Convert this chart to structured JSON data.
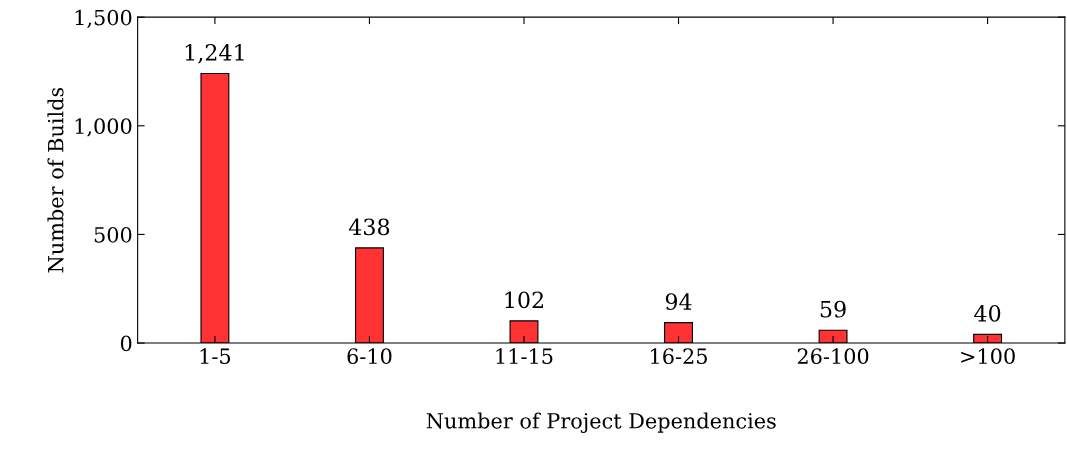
{
  "chart_data": {
    "type": "bar",
    "xlabel": "Number of Project Dependencies",
    "ylabel": "Number of Builds",
    "categories": [
      "1-5",
      "6-10",
      "11-15",
      "16-25",
      "26-100",
      ">100"
    ],
    "values": [
      1241,
      438,
      102,
      94,
      59,
      40
    ],
    "value_labels": [
      "1,241",
      "438",
      "102",
      "94",
      "59",
      "40"
    ],
    "color": "#ff3333",
    "ylim": [
      0,
      1500
    ],
    "yticks": [
      0,
      500,
      {
        "value": 1000,
        "label": "1,000"
      },
      {
        "value": 1500,
        "label": "1,500"
      }
    ],
    "grid": false
  }
}
